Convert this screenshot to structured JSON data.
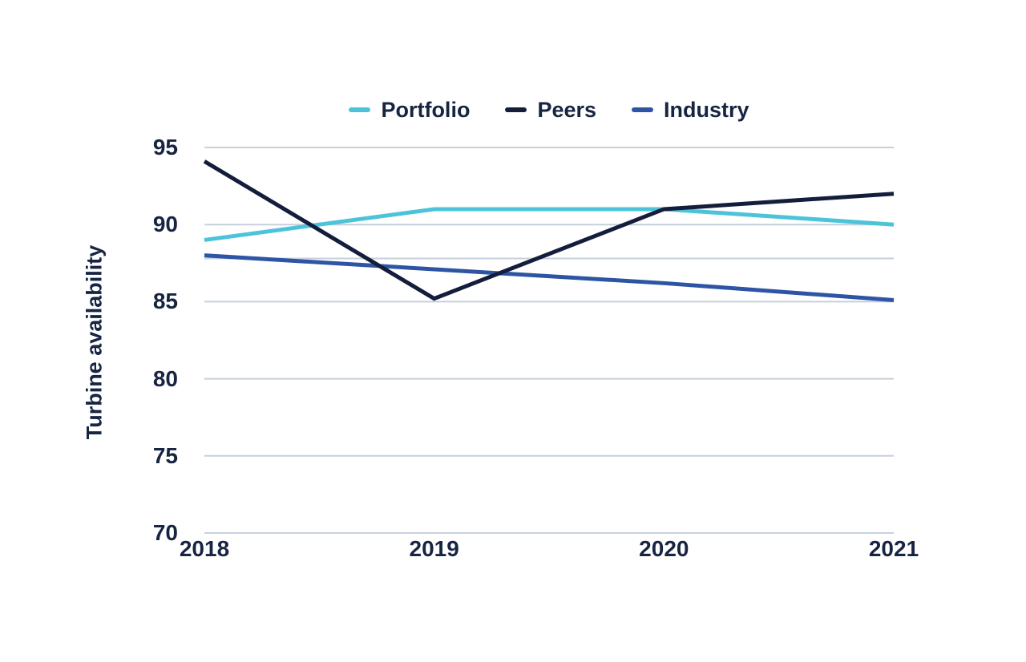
{
  "page": {
    "background": "#FFFFFF"
  },
  "chart_data": {
    "type": "line",
    "title": "",
    "xlabel": "",
    "ylabel": "Turbine availability",
    "categories": [
      "2018",
      "2019",
      "2020",
      "2021"
    ],
    "ylim": [
      70,
      95
    ],
    "yticks": [
      95,
      90,
      85,
      80,
      75,
      70
    ],
    "grid": true,
    "legend_position": "top",
    "series": [
      {
        "name": "Portfolio",
        "color": "#4CC3D9",
        "values": [
          89,
          91,
          91,
          90
        ]
      },
      {
        "name": "Peers",
        "color": "#141E3C",
        "values": [
          94.1,
          85.2,
          91,
          92
        ]
      },
      {
        "name": "Industry",
        "color": "#2E55A5",
        "values": [
          88,
          87.1,
          86.2,
          85.1
        ]
      }
    ],
    "reference_line": {
      "value": 87.8,
      "label": ""
    },
    "colors": {
      "gridline": "#C7D0DA",
      "text": "#172442"
    }
  }
}
